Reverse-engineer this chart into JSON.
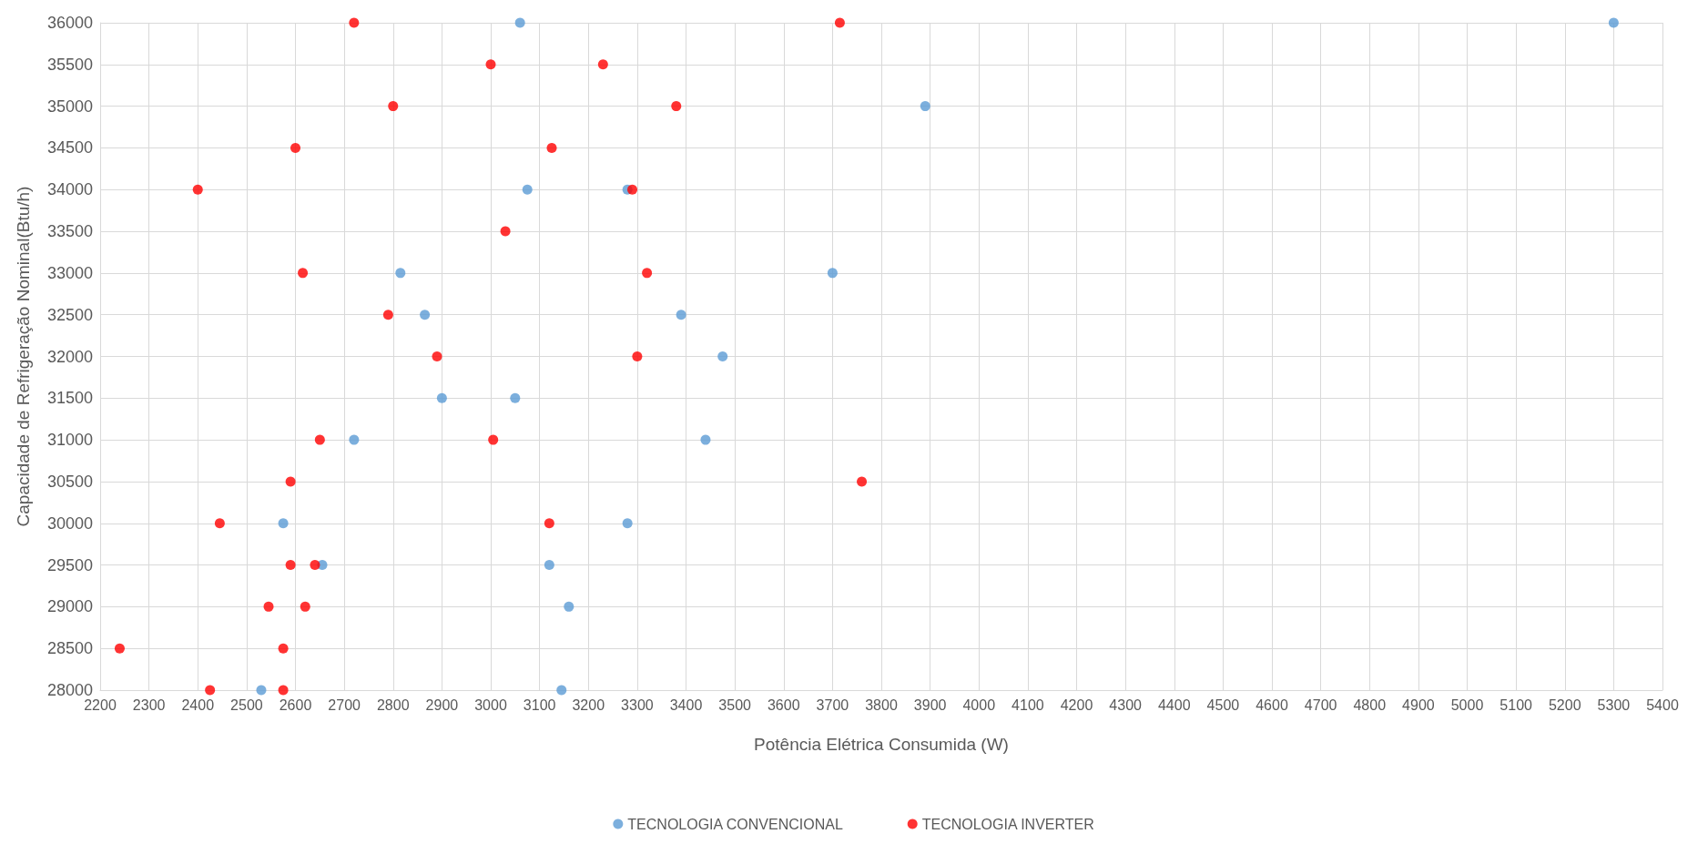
{
  "chart_data": {
    "type": "scatter",
    "xlabel": "Potência Elétrica Consumida (W)",
    "ylabel": "Capacidade de Refrigeração Nominal(Btu/h)",
    "xlim": [
      2200,
      5400
    ],
    "xticks": [
      2200,
      2300,
      2400,
      2500,
      2600,
      2700,
      2800,
      2900,
      3000,
      3100,
      3200,
      3300,
      3400,
      3500,
      3600,
      3700,
      3800,
      3900,
      4000,
      4100,
      4200,
      4300,
      4400,
      4500,
      4600,
      4700,
      4800,
      4900,
      5000,
      5100,
      5200,
      5300,
      5400
    ],
    "ylim": [
      28000,
      36000
    ],
    "yticks": [
      28000,
      28500,
      29000,
      29500,
      30000,
      30500,
      31000,
      31500,
      32000,
      32500,
      33000,
      33500,
      34000,
      34500,
      35000,
      35500,
      36000
    ],
    "grid": true,
    "legend": "bottom",
    "marker": "circle",
    "series": [
      {
        "name": "TECNOLOGIA CONVENCIONAL",
        "color": "#5b9bd5",
        "x": [
          3060,
          5300,
          3890,
          3075,
          3280,
          2815,
          3700,
          2865,
          3390,
          3475,
          2900,
          3050,
          2720,
          3440,
          2575,
          3280,
          2655,
          3120,
          3160,
          2530,
          3145
        ],
        "values": [
          36000,
          36000,
          35000,
          34000,
          34000,
          33000,
          33000,
          32500,
          32500,
          32000,
          31500,
          31500,
          31000,
          31000,
          30000,
          30000,
          29500,
          29500,
          29000,
          28000,
          28000
        ]
      },
      {
        "name": "TECNOLOGIA INVERTER",
        "color": "#ff0000",
        "x": [
          2720,
          3715,
          3000,
          3230,
          2800,
          3380,
          2600,
          3125,
          2400,
          3290,
          3030,
          2615,
          3320,
          2790,
          2890,
          3300,
          2650,
          3005,
          2590,
          3760,
          2445,
          3120,
          2590,
          2640,
          2545,
          2620,
          2240,
          2575,
          2425,
          2575
        ],
        "values": [
          36000,
          36000,
          35500,
          35500,
          35000,
          35000,
          34500,
          34500,
          34000,
          34000,
          33500,
          33000,
          33000,
          32500,
          32000,
          32000,
          31000,
          31000,
          30500,
          30500,
          30000,
          30000,
          29500,
          29500,
          29000,
          29000,
          28500,
          28500,
          28000,
          28000
        ]
      }
    ]
  }
}
